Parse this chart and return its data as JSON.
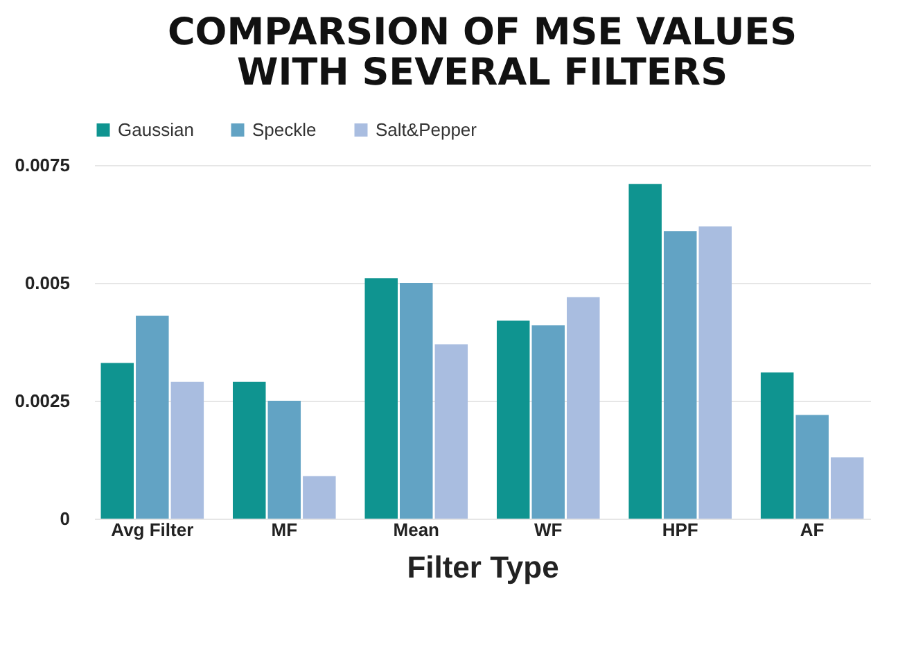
{
  "chart_data": {
    "type": "bar",
    "title": "COMPARSION OF MSE VALUES\nWITH SEVERAL FILTERS",
    "xlabel": "Filter Type",
    "categories": [
      "Avg Filter",
      "MF",
      "Mean",
      "WF",
      "HPF",
      "AF"
    ],
    "series": [
      {
        "name": "Gaussian",
        "color": "#0f9490",
        "values": [
          0.0033,
          0.0029,
          0.0051,
          0.0042,
          0.0071,
          0.0031
        ]
      },
      {
        "name": "Speckle",
        "color": "#62a3c4",
        "values": [
          0.0043,
          0.0025,
          0.005,
          0.0041,
          0.0061,
          0.0022
        ]
      },
      {
        "name": "Salt&Pepper",
        "color": "#a9bde0",
        "values": [
          0.0029,
          0.0009,
          0.0037,
          0.0047,
          0.0062,
          0.0013
        ]
      }
    ],
    "ylim": [
      0,
      0.0075
    ],
    "yticks": [
      0,
      0.0025,
      0.005,
      0.0075
    ],
    "grid": "y",
    "legend": "top"
  }
}
